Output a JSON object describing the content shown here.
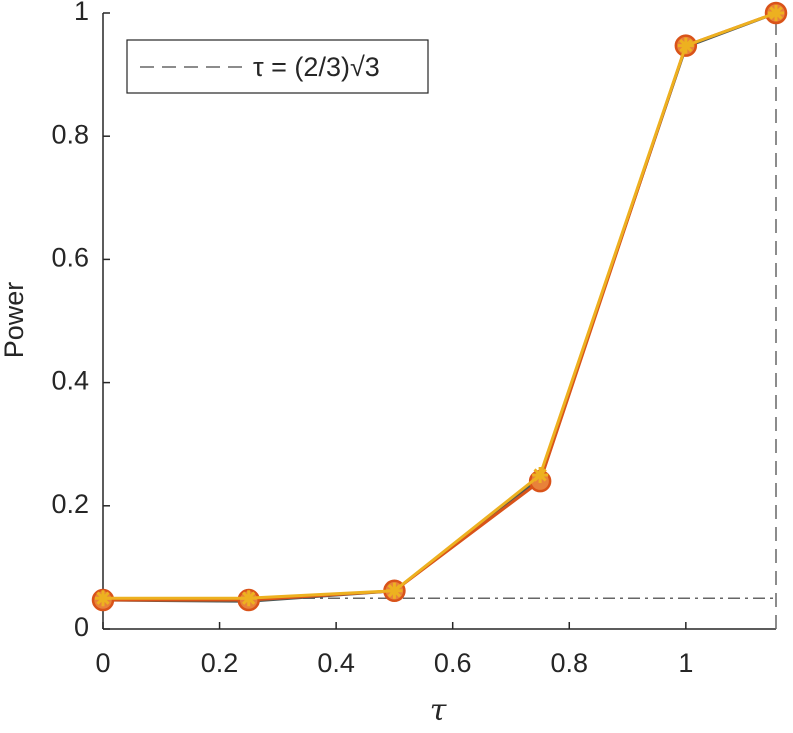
{
  "chart_data": {
    "type": "line",
    "x_label": "τ",
    "y_label": "Power",
    "x": [
      0,
      0.25,
      0.5,
      0.75,
      1,
      1.1547
    ],
    "series": [
      {
        "color": "#4a5858",
        "marker": "none",
        "values": [
          0.047,
          0.045,
          0.062,
          0.245,
          0.945,
          1.0
        ]
      },
      {
        "color": "#d95319",
        "marker": "o",
        "values": [
          0.047,
          0.047,
          0.062,
          0.24,
          0.947,
          1.0
        ]
      },
      {
        "color": "#edb120",
        "marker": "*",
        "values": [
          0.05,
          0.05,
          0.062,
          0.25,
          0.947,
          1.0
        ]
      }
    ],
    "hline": {
      "value": 0.05,
      "color": "#666666"
    },
    "vline": {
      "value": 1.1547,
      "color": "#666666",
      "label": "τ = (2/3)√3"
    },
    "xlim": [
      0,
      1.1547
    ],
    "ylim": [
      0,
      1
    ],
    "xticks": [
      0,
      0.2,
      0.4,
      0.6,
      0.8,
      1
    ],
    "yticks": [
      0,
      0.2,
      0.4,
      0.6,
      0.8,
      1
    ],
    "legend": "top-left"
  }
}
